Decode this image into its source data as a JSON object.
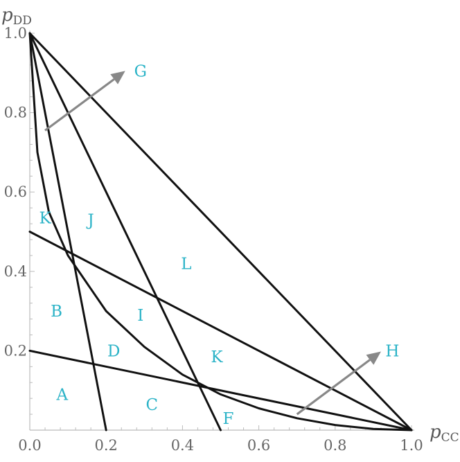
{
  "chart_data": {
    "type": "diagram",
    "xlabel": "p",
    "xlabel_sub": "CC",
    "ylabel": "p",
    "ylabel_sub": "DD",
    "xlim": [
      0,
      1
    ],
    "ylim": [
      0,
      1
    ],
    "x_ticks": [
      "0.0",
      "0.2",
      "0.4",
      "0.6",
      "0.8",
      "1.0"
    ],
    "y_ticks": [
      "0.2",
      "0.4",
      "0.6",
      "0.8",
      "1.0"
    ],
    "lines": [
      {
        "from": [
          0,
          1
        ],
        "to": [
          1,
          0
        ]
      },
      {
        "from": [
          0,
          1
        ],
        "to": [
          0.5,
          0
        ]
      },
      {
        "from": [
          0,
          0.5
        ],
        "to": [
          1,
          0
        ]
      },
      {
        "from": [
          0,
          0.2
        ],
        "to": [
          1,
          0
        ]
      },
      {
        "from": [
          0,
          1
        ],
        "to": [
          0.2,
          0
        ]
      }
    ],
    "curves": [
      {
        "type": "hyperbola",
        "note": "(1-x)(1-y) relation",
        "points": [
          [
            0,
            1
          ],
          [
            0.02,
            0.7
          ],
          [
            0.05,
            0.55
          ],
          [
            0.1,
            0.44
          ],
          [
            0.2,
            0.3
          ],
          [
            0.3,
            0.21
          ],
          [
            0.4,
            0.14
          ],
          [
            0.5,
            0.09
          ],
          [
            0.6,
            0.055
          ],
          [
            0.7,
            0.03
          ],
          [
            0.8,
            0.013
          ],
          [
            0.9,
            0.003
          ],
          [
            1,
            0
          ]
        ]
      }
    ],
    "arrows": [
      {
        "from": [
          0.04,
          0.755
        ],
        "to": [
          0.25,
          0.905
        ]
      },
      {
        "from": [
          0.7,
          0.04
        ],
        "to": [
          0.92,
          0.198
        ]
      }
    ],
    "regions": [
      {
        "label": "A",
        "x": 0.085,
        "y": 0.09
      },
      {
        "label": "B",
        "x": 0.07,
        "y": 0.3
      },
      {
        "label": "C",
        "x": 0.32,
        "y": 0.065
      },
      {
        "label": "D",
        "x": 0.22,
        "y": 0.2
      },
      {
        "label": "F",
        "x": 0.52,
        "y": 0.03
      },
      {
        "label": "G",
        "x": 0.29,
        "y": 0.905
      },
      {
        "label": "H",
        "x": 0.95,
        "y": 0.2
      },
      {
        "label": "I",
        "x": 0.29,
        "y": 0.29
      },
      {
        "label": "J",
        "x": 0.16,
        "y": 0.53
      },
      {
        "label": "K",
        "x": 0.04,
        "y": 0.535
      },
      {
        "label": "K",
        "x": 0.49,
        "y": 0.185
      },
      {
        "label": "L",
        "x": 0.41,
        "y": 0.42
      }
    ]
  }
}
